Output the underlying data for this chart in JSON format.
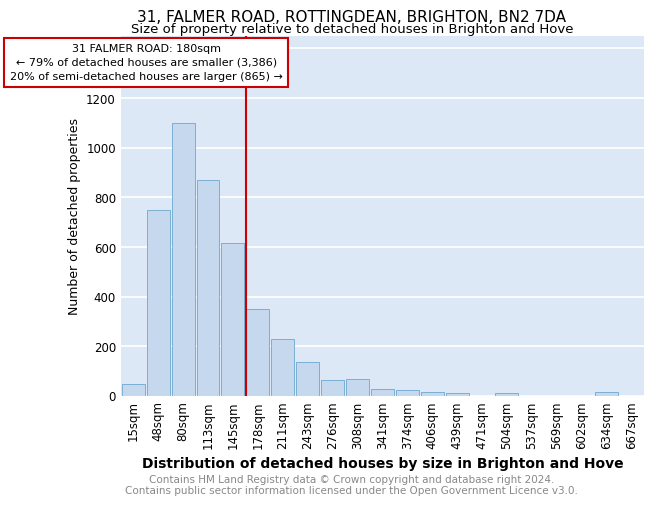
{
  "title_line1": "31, FALMER ROAD, ROTTINGDEAN, BRIGHTON, BN2 7DA",
  "title_line2": "Size of property relative to detached houses in Brighton and Hove",
  "xlabel": "Distribution of detached houses by size in Brighton and Hove",
  "ylabel": "Number of detached properties",
  "footnote": "Contains HM Land Registry data © Crown copyright and database right 2024.\nContains public sector information licensed under the Open Government Licence v3.0.",
  "categories": [
    "15sqm",
    "48sqm",
    "80sqm",
    "113sqm",
    "145sqm",
    "178sqm",
    "211sqm",
    "243sqm",
    "276sqm",
    "308sqm",
    "341sqm",
    "374sqm",
    "406sqm",
    "439sqm",
    "471sqm",
    "504sqm",
    "537sqm",
    "569sqm",
    "602sqm",
    "634sqm",
    "667sqm"
  ],
  "values": [
    50,
    750,
    1100,
    870,
    615,
    350,
    230,
    135,
    65,
    70,
    28,
    25,
    18,
    12,
    0,
    12,
    0,
    0,
    0,
    15,
    0
  ],
  "bar_color": "#c5d8ed",
  "bar_edge_color": "#7aafd4",
  "red_line_index": 5,
  "annotation_line0": "31 FALMER ROAD: 180sqm",
  "annotation_line1": "← 79% of detached houses are smaller (3,386)",
  "annotation_line2": "20% of semi-detached houses are larger (865) →",
  "annotation_box_color": "#cc0000",
  "ylim": [
    0,
    1450
  ],
  "yticks": [
    0,
    200,
    400,
    600,
    800,
    1000,
    1200,
    1400
  ],
  "bg_color": "#dce8f5",
  "grid_color": "#ffffff",
  "title1_fontsize": 11,
  "title2_fontsize": 9.5,
  "xlabel_fontsize": 10,
  "ylabel_fontsize": 9,
  "footnote_fontsize": 7.5,
  "tick_fontsize": 8.5
}
